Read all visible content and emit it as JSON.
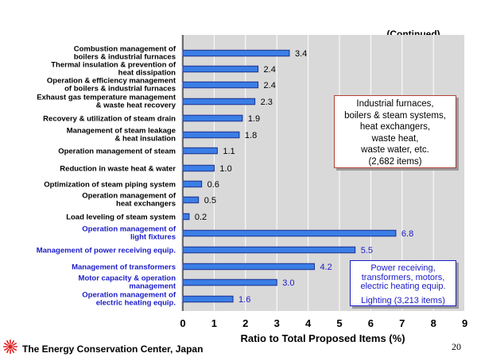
{
  "header": {
    "continued": "(Continued)"
  },
  "chart_data": {
    "type": "bar",
    "orientation": "horizontal",
    "title": "",
    "xlabel": "Ratio to Total Proposed Items (%)",
    "xlim": [
      0,
      9
    ],
    "xticks": [
      0,
      1,
      2,
      3,
      4,
      5,
      6,
      7,
      8,
      9
    ],
    "grid": "vertical",
    "colors": {
      "bar": "#3a7ee6",
      "bar_edge": "#1c2e8a",
      "plot_bg": "#d9d9d9",
      "grid": "#ffffff",
      "group2_text": "#1a1ac8"
    },
    "categories": [
      [
        "Combustion management of",
        "boilers & industrial furnaces"
      ],
      [
        "Thermal insulation & prevention of",
        "heat dissipation"
      ],
      [
        "Operation & efficiency management",
        "of boilers & industrial furnaces"
      ],
      [
        "Exhaust gas temperature management",
        "& waste heat recovery"
      ],
      [
        "Recovery & utilization of steam drain"
      ],
      [
        "Management of steam leakage",
        "& heat insulation"
      ],
      [
        "Operation management of steam"
      ],
      [
        "Reduction in waste heat & water"
      ],
      [
        "Optimization of steam piping system"
      ],
      [
        "Operation management of",
        "heat exchangers"
      ],
      [
        "Load leveling of steam system"
      ],
      [
        "Operation management of",
        "light fixtures"
      ],
      [
        "Management of power receiving equip."
      ],
      [
        "Management of transformers"
      ],
      [
        "Motor capacity & operation",
        "management"
      ],
      [
        "Operation management of",
        "electric heating equip."
      ]
    ],
    "values": [
      3.4,
      2.4,
      2.4,
      2.3,
      1.9,
      1.8,
      1.1,
      1.0,
      0.6,
      0.5,
      0.2,
      6.8,
      5.5,
      4.2,
      3.0,
      1.6
    ],
    "value_labels": [
      "3.4",
      "2.4",
      "2.4",
      "2.3",
      "1.9",
      "1.8",
      "1.1",
      "1.0",
      "0.6",
      "0.5",
      "0.2",
      "6.8",
      "5.5",
      "4.2",
      "3.0",
      "1.6"
    ],
    "groups": [
      0,
      0,
      0,
      0,
      0,
      0,
      0,
      0,
      0,
      0,
      0,
      1,
      1,
      1,
      1,
      1
    ]
  },
  "annotations": {
    "industrial": {
      "lines": [
        "Industrial furnaces,",
        "boilers & steam systems,",
        "heat exchangers,",
        "waste heat,",
        "waste water, etc.",
        "(2,682 items)"
      ]
    },
    "electrical": {
      "lines": [
        "Power receiving,",
        "transformers, motors,",
        "electric heating equip."
      ],
      "lighting": "Lighting  (3,213 items)"
    }
  },
  "footer": {
    "organization": "The Energy Conservation Center, Japan",
    "page_number": "20",
    "logo_icon": "eccj-sunburst-logo-icon"
  }
}
